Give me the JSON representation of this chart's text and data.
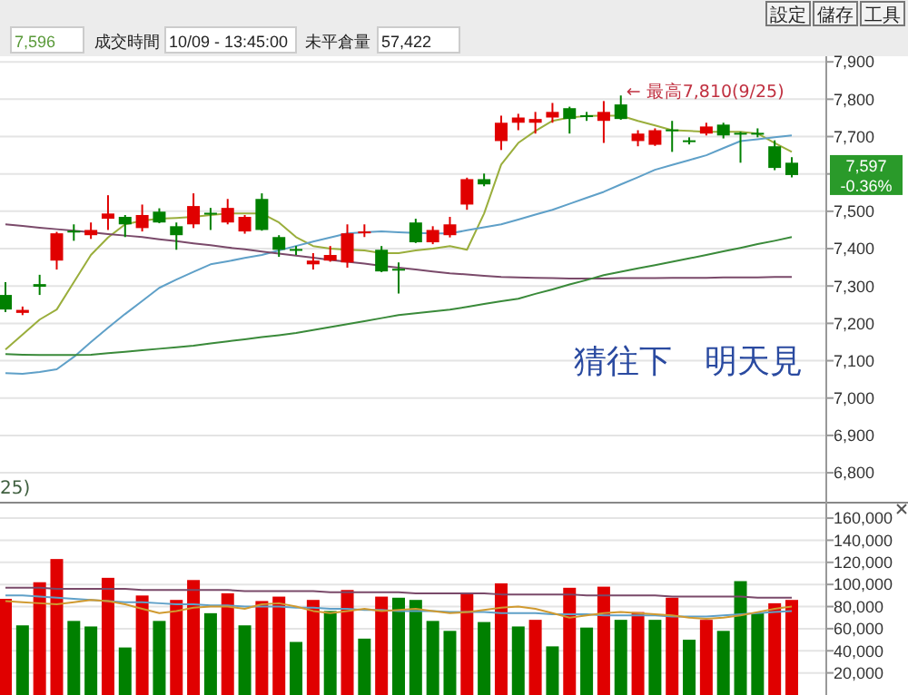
{
  "chart_data": [
    {
      "type": "candlestick",
      "categories": [
        null,
        null,
        null,
        null,
        null,
        null,
        null,
        null,
        null,
        null,
        null,
        null,
        null,
        null,
        null,
        null,
        null,
        null,
        null,
        null,
        null,
        null,
        null,
        null,
        null,
        null,
        null,
        null,
        null,
        null,
        null,
        null,
        null,
        null,
        null,
        null,
        null,
        null,
        null,
        null,
        null,
        null,
        null,
        null,
        null,
        null,
        null
      ],
      "ohlc": [
        [
          7276,
          7310,
          7230,
          7237
        ],
        [
          7228,
          7245,
          7222,
          7236
        ],
        [
          7305,
          7330,
          7276,
          7298
        ],
        [
          7368,
          7445,
          7344,
          7441
        ],
        [
          7448,
          7465,
          7421,
          7444
        ],
        [
          7436,
          7470,
          7426,
          7450
        ],
        [
          7480,
          7543,
          7450,
          7494
        ],
        [
          7485,
          7490,
          7431,
          7465
        ],
        [
          7455,
          7518,
          7446,
          7490
        ],
        [
          7499,
          7508,
          7468,
          7470
        ],
        [
          7460,
          7470,
          7397,
          7436
        ],
        [
          7465,
          7548,
          7455,
          7514
        ],
        [
          7496,
          7509,
          7450,
          7492
        ],
        [
          7470,
          7533,
          7465,
          7509
        ],
        [
          7446,
          7490,
          7440,
          7485
        ],
        [
          7533,
          7548,
          7448,
          7450
        ],
        [
          7431,
          7436,
          7378,
          7397
        ],
        [
          7399,
          7407,
          7383,
          7396
        ],
        [
          7358,
          7388,
          7344,
          7368
        ],
        [
          7368,
          7407,
          7365,
          7383
        ],
        [
          7363,
          7465,
          7349,
          7441
        ],
        [
          7441,
          7465,
          7431,
          7446
        ],
        [
          7397,
          7407,
          7337,
          7339
        ],
        [
          7346,
          7363,
          7280,
          7343
        ],
        [
          7470,
          7480,
          7415,
          7417
        ],
        [
          7417,
          7460,
          7412,
          7450
        ],
        [
          7436,
          7485,
          7430,
          7465
        ],
        [
          7518,
          7590,
          7504,
          7586
        ],
        [
          7586,
          7601,
          7567,
          7572
        ],
        [
          7688,
          7756,
          7664,
          7737
        ],
        [
          7737,
          7761,
          7717,
          7751
        ],
        [
          7737,
          7766,
          7708,
          7747
        ],
        [
          7751,
          7790,
          7737,
          7766
        ],
        [
          7776,
          7780,
          7708,
          7747
        ],
        [
          7757,
          7766,
          7742,
          7755
        ],
        [
          7742,
          7795,
          7683,
          7766
        ],
        [
          7786,
          7810,
          7745,
          7747
        ],
        [
          7688,
          7717,
          7674,
          7708
        ],
        [
          7678,
          7722,
          7675,
          7717
        ],
        [
          7719,
          7742,
          7659,
          7716
        ],
        [
          7690,
          7698,
          7679,
          7687
        ],
        [
          7708,
          7737,
          7703,
          7727
        ],
        [
          7732,
          7737,
          7695,
          7703
        ],
        [
          7710,
          7713,
          7630,
          7707
        ],
        [
          7710,
          7722,
          7698,
          7707
        ],
        [
          7674,
          7690,
          7610,
          7616
        ],
        [
          7630,
          7645,
          7591,
          7597
        ]
      ],
      "colors": [
        "#008000",
        "#e00000",
        "#008000",
        "#e00000",
        "#008000",
        "#e00000",
        "#e00000",
        "#008000",
        "#e00000",
        "#008000",
        "#008000",
        "#e00000",
        "#008000",
        "#e00000",
        "#e00000",
        "#008000",
        "#008000",
        "#008000",
        "#e00000",
        "#e00000",
        "#e00000",
        "#e00000",
        "#008000",
        "#008000",
        "#008000",
        "#e00000",
        "#e00000",
        "#e00000",
        "#008000",
        "#e00000",
        "#e00000",
        "#e00000",
        "#e00000",
        "#008000",
        "#008000",
        "#e00000",
        "#008000",
        "#e00000",
        "#e00000",
        "#008000",
        "#008000",
        "#e00000",
        "#008000",
        "#008000",
        "#008000",
        "#008000",
        "#008000"
      ],
      "series": [
        {
          "type": "line",
          "color": "#9aae3c",
          "values": [
            7130,
            7170,
            7210,
            7237,
            7310,
            7383,
            7430,
            7465,
            7475,
            7480,
            7482,
            7485,
            7490,
            7494,
            7494,
            7494,
            7470,
            7431,
            7407,
            7400,
            7397,
            7395,
            7388,
            7388,
            7395,
            7400,
            7407,
            7397,
            7494,
            7625,
            7683,
            7715,
            7742,
            7751,
            7755,
            7756,
            7756,
            7742,
            7730,
            7717,
            7715,
            7713,
            7713,
            7713,
            7708,
            7683,
            7659
          ]
        },
        {
          "type": "line",
          "color": "#5fa0c8",
          "values": [
            7067,
            7065,
            7070,
            7077,
            7110,
            7150,
            7188,
            7225,
            7260,
            7295,
            7317,
            7338,
            7358,
            7366,
            7375,
            7383,
            7395,
            7407,
            7419,
            7430,
            7441,
            7444,
            7446,
            7444,
            7442,
            7441,
            7441,
            7449,
            7457,
            7465,
            7478,
            7491,
            7504,
            7520,
            7536,
            7552,
            7572,
            7591,
            7611,
            7624,
            7637,
            7650,
            7669,
            7688,
            7693,
            7698,
            7703
          ]
        },
        {
          "type": "line",
          "color": "#7a4a6a",
          "values": [
            7465,
            7461,
            7456,
            7452,
            7448,
            7444,
            7439,
            7435,
            7431,
            7425,
            7420,
            7414,
            7409,
            7403,
            7398,
            7392,
            7387,
            7381,
            7376,
            7370,
            7365,
            7360,
            7354,
            7349,
            7344,
            7339,
            7334,
            7331,
            7327,
            7324,
            7323,
            7322,
            7321,
            7320,
            7320,
            7320,
            7321,
            7321,
            7321,
            7322,
            7322,
            7322,
            7323,
            7323,
            7323,
            7324,
            7324
          ]
        },
        {
          "type": "line",
          "color": "#3a8a3a",
          "values": [
            7118,
            7116,
            7115,
            7115,
            7115,
            7116,
            7120,
            7124,
            7128,
            7132,
            7136,
            7140,
            7146,
            7152,
            7157,
            7163,
            7168,
            7174,
            7182,
            7190,
            7198,
            7206,
            7214,
            7222,
            7227,
            7232,
            7237,
            7244,
            7252,
            7259,
            7266,
            7279,
            7291,
            7304,
            7316,
            7329,
            7338,
            7347,
            7356,
            7365,
            7374,
            7383,
            7393,
            7402,
            7412,
            7421,
            7431
          ]
        }
      ],
      "ylim": [
        6720,
        7915
      ],
      "yticks": [
        {
          "value": 6800,
          "label": "6,800"
        },
        {
          "value": 6900,
          "label": "6,900"
        },
        {
          "value": 7000,
          "label": "7,000"
        },
        {
          "value": 7100,
          "label": "7,100"
        },
        {
          "value": 7200,
          "label": "7,200"
        },
        {
          "value": 7300,
          "label": "7,300"
        },
        {
          "value": 7400,
          "label": "7,400"
        },
        {
          "value": 7500,
          "label": "7,500"
        },
        {
          "value": 7600,
          "label": null
        },
        {
          "value": 7700,
          "label": "7,700"
        },
        {
          "value": 7800,
          "label": "7,800"
        },
        {
          "value": 7900,
          "label": "7,900"
        }
      ],
      "grid": "y",
      "tick_labels": "y",
      "annotations": [
        "7,596",
        "成交時間",
        "10/09 - 13:45:00",
        "未平倉量",
        "57,422",
        "設定",
        "儲存",
        "工具",
        "← 最高7,810(9/25)",
        {
          "text": "7,597",
          "y": 7597
        },
        "-0.36%",
        "猜往下　明天見",
        "25)"
      ]
    },
    {
      "type": "bar",
      "categories": [
        null,
        null,
        null,
        null,
        null,
        null,
        null,
        null,
        null,
        null,
        null,
        null,
        null,
        null,
        null,
        null,
        null,
        null,
        null,
        null,
        null,
        null,
        null,
        null,
        null,
        null,
        null,
        null,
        null,
        null,
        null,
        null,
        null,
        null,
        null,
        null,
        null,
        null,
        null,
        null,
        null,
        null,
        null,
        null,
        null,
        null,
        null
      ],
      "series": [
        {
          "type": "bar",
          "values": [
            87000,
            63000,
            102000,
            123000,
            67000,
            62000,
            106000,
            43000,
            90000,
            67000,
            86000,
            104000,
            74000,
            92000,
            63000,
            85000,
            89000,
            48000,
            86000,
            76000,
            95000,
            51000,
            89000,
            88000,
            86000,
            67000,
            58000,
            92000,
            66000,
            101000,
            62000,
            68000,
            44000,
            97000,
            61000,
            98000,
            68000,
            75000,
            68000,
            88000,
            50000,
            68000,
            58000,
            103000,
            74000,
            83000,
            86000
          ],
          "colors": [
            "#e00000",
            "#008000",
            "#e00000",
            "#e00000",
            "#008000",
            "#008000",
            "#e00000",
            "#008000",
            "#e00000",
            "#008000",
            "#e00000",
            "#e00000",
            "#008000",
            "#e00000",
            "#008000",
            "#e00000",
            "#e00000",
            "#008000",
            "#e00000",
            "#008000",
            "#e00000",
            "#008000",
            "#e00000",
            "#008000",
            "#008000",
            "#008000",
            "#008000",
            "#e00000",
            "#008000",
            "#e00000",
            "#008000",
            "#e00000",
            "#008000",
            "#e00000",
            "#008000",
            "#e00000",
            "#008000",
            "#e00000",
            "#008000",
            "#e00000",
            "#008000",
            "#e00000",
            "#008000",
            "#008000",
            "#008000",
            "#e00000",
            "#e00000"
          ]
        },
        {
          "type": "line",
          "color": "#7a4a6a",
          "values": [
            97000,
            97000,
            97000,
            96000,
            96000,
            96000,
            96000,
            96000,
            95000,
            95000,
            95000,
            95000,
            95000,
            95000,
            94000,
            94000,
            94000,
            94000,
            94000,
            93000,
            93000,
            93000,
            93000,
            93000,
            92000,
            92000,
            92000,
            92000,
            92000,
            91000,
            91000,
            91000,
            91000,
            91000,
            90000,
            90000,
            90000,
            90000,
            90000,
            89000,
            89000,
            89000,
            89000,
            89000,
            88000,
            88000,
            88000
          ]
        },
        {
          "type": "line",
          "color": "#5fa0c8",
          "values": [
            90000,
            90000,
            89000,
            88000,
            87000,
            86000,
            85000,
            84000,
            84000,
            83000,
            82000,
            82000,
            81000,
            81000,
            80000,
            80000,
            80000,
            79000,
            79000,
            78000,
            78000,
            77000,
            77000,
            76000,
            76000,
            76000,
            75000,
            75000,
            75000,
            74000,
            74000,
            74000,
            73000,
            73000,
            73000,
            72000,
            72000,
            72000,
            72000,
            71000,
            71000,
            71000,
            72000,
            73000,
            74000,
            75000,
            76000
          ]
        },
        {
          "type": "line",
          "color": "#d09a30",
          "values": [
            85000,
            84000,
            83000,
            82000,
            84000,
            86000,
            85000,
            82000,
            78000,
            74000,
            76000,
            79000,
            80000,
            80000,
            78000,
            82000,
            83000,
            80000,
            76000,
            74000,
            76000,
            78000,
            76000,
            77000,
            78000,
            76000,
            74000,
            75000,
            77000,
            79000,
            80000,
            78000,
            74000,
            70000,
            72000,
            74000,
            75000,
            74000,
            73000,
            72000,
            70000,
            69000,
            70000,
            72000,
            75000,
            78000,
            80000
          ]
        }
      ],
      "ylim": [
        0,
        174000
      ],
      "yticks": [
        {
          "value": 20000,
          "label": "20,000"
        },
        {
          "value": 40000,
          "label": "40,000"
        },
        {
          "value": 60000,
          "label": "60,000"
        },
        {
          "value": 80000,
          "label": "80,000"
        },
        {
          "value": 100000,
          "label": "100,000"
        },
        {
          "value": 120000,
          "label": "120,000"
        },
        {
          "value": 140000,
          "label": "140,000"
        },
        {
          "value": 160000,
          "label": "160,000"
        }
      ],
      "grid": "y",
      "tick_labels": "y"
    }
  ]
}
